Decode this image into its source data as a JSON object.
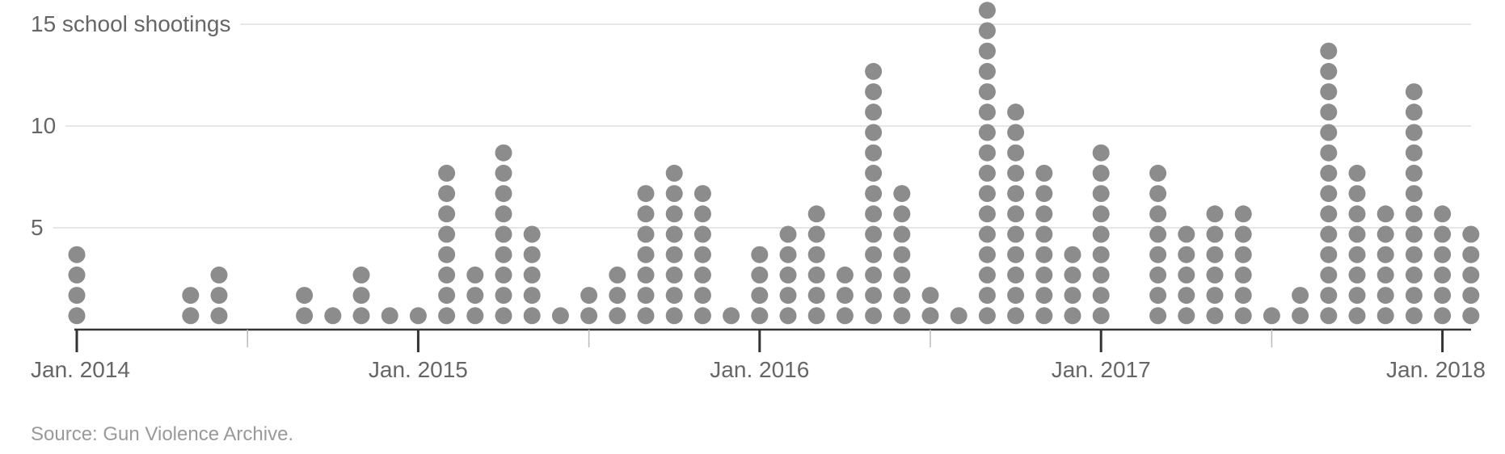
{
  "chart_data": {
    "type": "dot-histogram",
    "title": "",
    "xlabel": "",
    "ylabel": "school shootings",
    "y_tick_values": [
      5,
      10,
      15
    ],
    "y_tick_labels": [
      "5",
      "10",
      "15 school shootings"
    ],
    "ylim": [
      0,
      15.5
    ],
    "x_start": "Jan. 2014",
    "x_end": "Jan. 2018",
    "x_tick_labels": [
      "Jan. 2014",
      "Jan. 2015",
      "Jan. 2016",
      "Jan. 2017",
      "Jan. 2018"
    ],
    "grid": true,
    "months": [
      "Jan. 2014",
      "Feb. 2014",
      "Mar. 2014",
      "Apr. 2014",
      "May 2014",
      "Jun. 2014",
      "Jul. 2014",
      "Aug. 2014",
      "Sep. 2014",
      "Oct. 2014",
      "Nov. 2014",
      "Dec. 2014",
      "Jan. 2015",
      "Feb. 2015",
      "Mar. 2015",
      "Apr. 2015",
      "May 2015",
      "Jun. 2015",
      "Jul. 2015",
      "Aug. 2015",
      "Sep. 2015",
      "Oct. 2015",
      "Nov. 2015",
      "Dec. 2015",
      "Jan. 2016",
      "Feb. 2016",
      "Mar. 2016",
      "Apr. 2016",
      "May 2016",
      "Jun. 2016",
      "Jul. 2016",
      "Aug. 2016",
      "Sep. 2016",
      "Oct. 2016",
      "Nov. 2016",
      "Dec. 2016",
      "Jan. 2017",
      "Feb. 2017",
      "Mar. 2017",
      "Apr. 2017",
      "May 2017",
      "Jun. 2017",
      "Jul. 2017",
      "Aug. 2017",
      "Sep. 2017",
      "Oct. 2017",
      "Nov. 2017",
      "Dec. 2017",
      "Jan. 2018",
      "Feb. 2018"
    ],
    "values": [
      4,
      0,
      0,
      0,
      2,
      3,
      0,
      0,
      2,
      1,
      3,
      1,
      1,
      8,
      3,
      9,
      5,
      1,
      2,
      3,
      7,
      8,
      7,
      1,
      4,
      5,
      6,
      3,
      13,
      7,
      2,
      1,
      16,
      11,
      8,
      4,
      9,
      0,
      8,
      5,
      6,
      6,
      1,
      2,
      14,
      8,
      6,
      12,
      6,
      5
    ],
    "colors": {
      "dot": "#8c8c8c",
      "axis": "#333333",
      "grid": "#dddddd",
      "label": "#666666",
      "source": "#999999"
    }
  },
  "source": "Source: Gun Violence Archive."
}
